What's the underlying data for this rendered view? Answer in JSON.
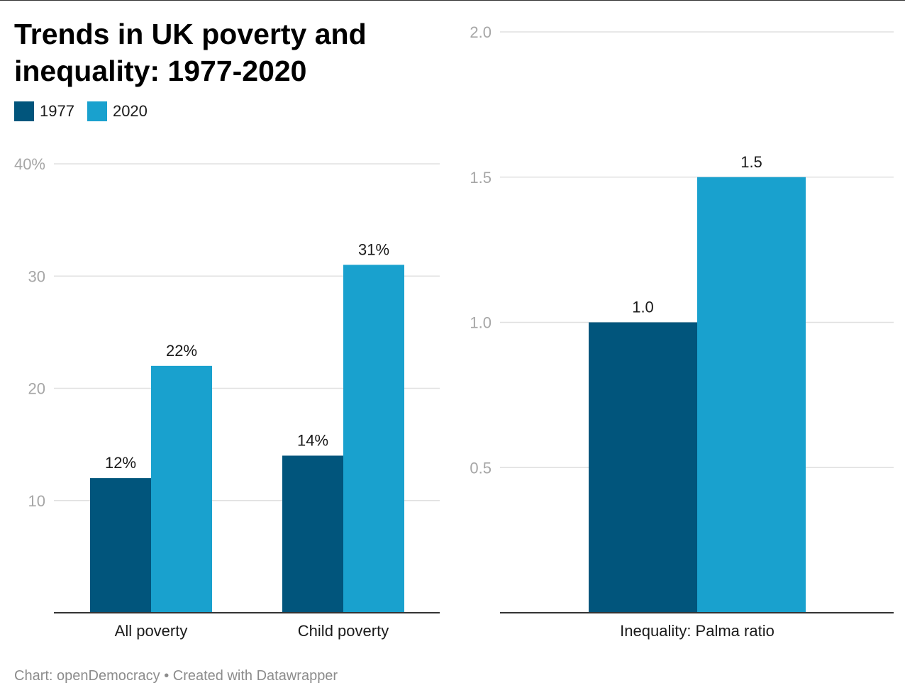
{
  "title": {
    "line1": "Trends in UK poverty and",
    "line2": "inequality: 1977-2020"
  },
  "legend": [
    {
      "label": "1977",
      "color": "#01557c"
    },
    {
      "label": "2020",
      "color": "#19a1ce"
    }
  ],
  "footer": "Chart: openDemocracy • Created with Datawrapper",
  "chart_data": [
    {
      "type": "bar",
      "title": "Trends in UK poverty and inequality: 1977-2020",
      "categories": [
        "All poverty",
        "Child poverty"
      ],
      "series": [
        {
          "name": "1977",
          "color": "#01557c",
          "values": [
            12,
            14
          ],
          "labels": [
            "12%",
            "14%"
          ]
        },
        {
          "name": "2020",
          "color": "#19a1ce",
          "values": [
            22,
            31
          ],
          "labels": [
            "22%",
            "31%"
          ]
        }
      ],
      "ylim": [
        0,
        40
      ],
      "yticks": [
        {
          "value": 10,
          "label": "10"
        },
        {
          "value": 20,
          "label": "20"
        },
        {
          "value": 30,
          "label": "30"
        },
        {
          "value": 40,
          "label": "40%"
        }
      ],
      "grid": true,
      "xlabel": "",
      "ylabel": ""
    },
    {
      "type": "bar",
      "categories": [
        "Inequality: Palma ratio"
      ],
      "series": [
        {
          "name": "1977",
          "color": "#01557c",
          "values": [
            1.0
          ],
          "labels": [
            "1.0"
          ]
        },
        {
          "name": "2020",
          "color": "#19a1ce",
          "values": [
            1.5
          ],
          "labels": [
            "1.5"
          ]
        }
      ],
      "ylim": [
        0,
        2.0
      ],
      "yticks": [
        {
          "value": 0.5,
          "label": "0.5"
        },
        {
          "value": 1.0,
          "label": "1.0"
        },
        {
          "value": 1.5,
          "label": "1.5"
        },
        {
          "value": 2.0,
          "label": "2.0"
        }
      ],
      "grid": true,
      "xlabel": "",
      "ylabel": ""
    }
  ]
}
